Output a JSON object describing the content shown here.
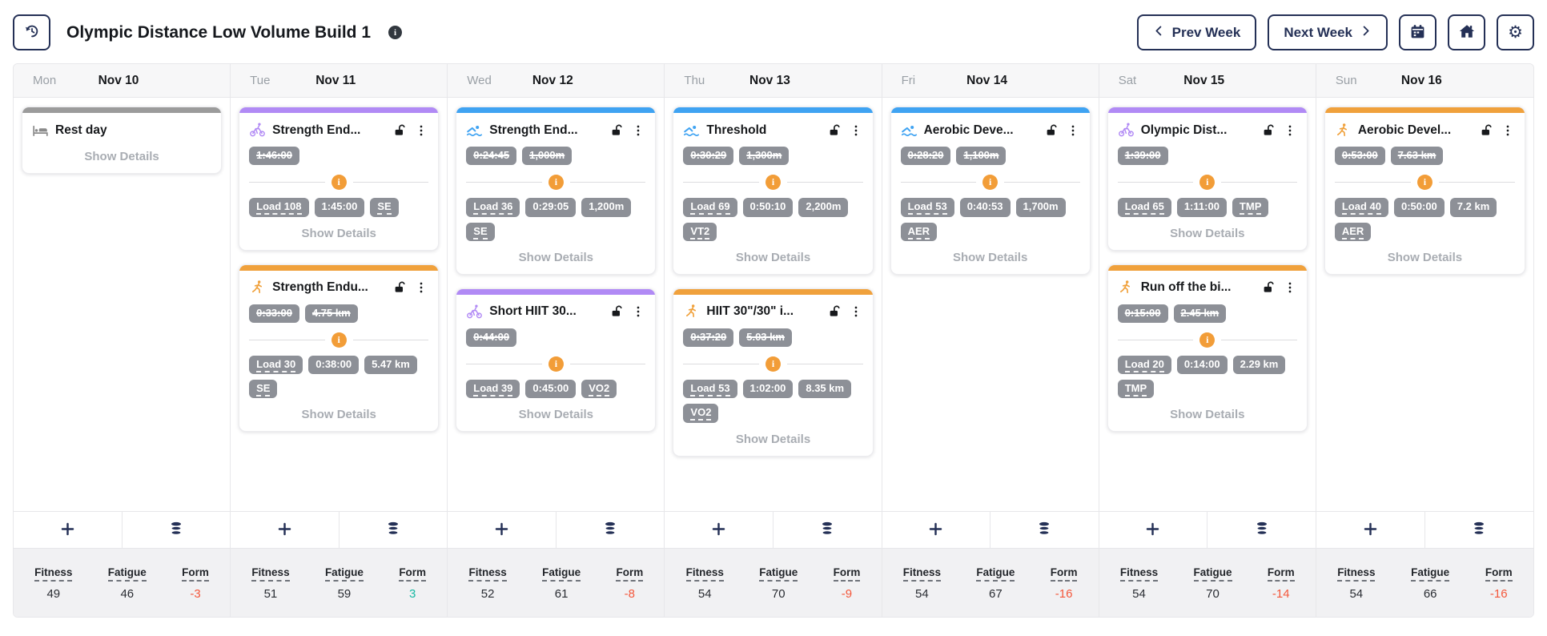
{
  "header": {
    "title": "Olympic Distance Low Volume Build 1",
    "prev_label": "Prev Week",
    "next_label": "Next Week"
  },
  "labels": {
    "show_details": "Show Details",
    "fitness": "Fitness",
    "fatigue": "Fatigue",
    "form": "Form"
  },
  "colors": {
    "bike": "#b18af5",
    "swim": "#3fa3f2",
    "run": "#f0a13c",
    "rest": "#9b9b9b",
    "badge": "#8d9097",
    "navy": "#243056",
    "form_negative": "#f4573b",
    "form_positive": "#16b8a2",
    "info_orange": "#f29d38"
  },
  "days": [
    {
      "name": "Mon",
      "date": "Nov 10",
      "stats": {
        "fitness": "49",
        "fatigue": "46",
        "form": "-3"
      },
      "workouts": [
        {
          "sport": "rest",
          "title": "Rest day",
          "planned": [],
          "metrics": []
        }
      ]
    },
    {
      "name": "Tue",
      "date": "Nov 11",
      "stats": {
        "fitness": "51",
        "fatigue": "59",
        "form": "3"
      },
      "workouts": [
        {
          "sport": "bike",
          "title": "Strength End...",
          "planned": [
            "1:46:00"
          ],
          "metrics": [
            {
              "label": "Load 108",
              "dashed": true
            },
            {
              "label": "1:45:00",
              "dashed": false
            },
            {
              "label": "SE",
              "dashed": true
            }
          ]
        },
        {
          "sport": "run",
          "title": "Strength Endu...",
          "planned": [
            "0:33:00",
            "4.75 km"
          ],
          "metrics": [
            {
              "label": "Load 30",
              "dashed": true
            },
            {
              "label": "0:38:00",
              "dashed": false
            },
            {
              "label": "5.47 km",
              "dashed": false
            },
            {
              "label": "SE",
              "dashed": true
            }
          ]
        }
      ]
    },
    {
      "name": "Wed",
      "date": "Nov 12",
      "stats": {
        "fitness": "52",
        "fatigue": "61",
        "form": "-8"
      },
      "workouts": [
        {
          "sport": "swim",
          "title": "Strength End...",
          "planned": [
            "0:24:45",
            "1,000m"
          ],
          "metrics": [
            {
              "label": "Load 36",
              "dashed": true
            },
            {
              "label": "0:29:05",
              "dashed": false
            },
            {
              "label": "1,200m",
              "dashed": false
            },
            {
              "label": "SE",
              "dashed": true
            }
          ]
        },
        {
          "sport": "bike",
          "title": "Short HIIT 30...",
          "planned": [
            "0:44:00"
          ],
          "metrics": [
            {
              "label": "Load 39",
              "dashed": true
            },
            {
              "label": "0:45:00",
              "dashed": false
            },
            {
              "label": "VO2",
              "dashed": true
            }
          ]
        }
      ]
    },
    {
      "name": "Thu",
      "date": "Nov 13",
      "stats": {
        "fitness": "54",
        "fatigue": "70",
        "form": "-9"
      },
      "workouts": [
        {
          "sport": "swim",
          "title": "Threshold",
          "planned": [
            "0:30:29",
            "1,300m"
          ],
          "metrics": [
            {
              "label": "Load 69",
              "dashed": true
            },
            {
              "label": "0:50:10",
              "dashed": false
            },
            {
              "label": "2,200m",
              "dashed": false
            },
            {
              "label": "VT2",
              "dashed": true
            }
          ]
        },
        {
          "sport": "run",
          "title": "HIIT 30\"/30\" i...",
          "planned": [
            "0:37:20",
            "5.03 km"
          ],
          "metrics": [
            {
              "label": "Load 53",
              "dashed": true
            },
            {
              "label": "1:02:00",
              "dashed": false
            },
            {
              "label": "8.35 km",
              "dashed": false
            },
            {
              "label": "VO2",
              "dashed": true
            }
          ]
        }
      ]
    },
    {
      "name": "Fri",
      "date": "Nov 14",
      "stats": {
        "fitness": "54",
        "fatigue": "67",
        "form": "-16"
      },
      "workouts": [
        {
          "sport": "swim",
          "title": "Aerobic Deve...",
          "planned": [
            "0:28:20",
            "1,100m"
          ],
          "metrics": [
            {
              "label": "Load 53",
              "dashed": true
            },
            {
              "label": "0:40:53",
              "dashed": false
            },
            {
              "label": "1,700m",
              "dashed": false
            },
            {
              "label": "AER",
              "dashed": true
            }
          ]
        }
      ]
    },
    {
      "name": "Sat",
      "date": "Nov 15",
      "stats": {
        "fitness": "54",
        "fatigue": "70",
        "form": "-14"
      },
      "workouts": [
        {
          "sport": "bike",
          "title": "Olympic Dist...",
          "planned": [
            "1:39:00"
          ],
          "metrics": [
            {
              "label": "Load 65",
              "dashed": true
            },
            {
              "label": "1:11:00",
              "dashed": false
            },
            {
              "label": "TMP",
              "dashed": true
            }
          ]
        },
        {
          "sport": "run",
          "title": "Run off the bi...",
          "planned": [
            "0:15:00",
            "2.45 km"
          ],
          "metrics": [
            {
              "label": "Load 20",
              "dashed": true
            },
            {
              "label": "0:14:00",
              "dashed": false
            },
            {
              "label": "2.29 km",
              "dashed": false
            },
            {
              "label": "TMP",
              "dashed": true
            }
          ]
        }
      ]
    },
    {
      "name": "Sun",
      "date": "Nov 16",
      "stats": {
        "fitness": "54",
        "fatigue": "66",
        "form": "-16"
      },
      "workouts": [
        {
          "sport": "run",
          "title": "Aerobic Devel...",
          "planned": [
            "0:53:00",
            "7.63 km"
          ],
          "metrics": [
            {
              "label": "Load 40",
              "dashed": true
            },
            {
              "label": "0:50:00",
              "dashed": false
            },
            {
              "label": "7.2 km",
              "dashed": false
            },
            {
              "label": "AER",
              "dashed": true
            }
          ]
        }
      ]
    }
  ]
}
